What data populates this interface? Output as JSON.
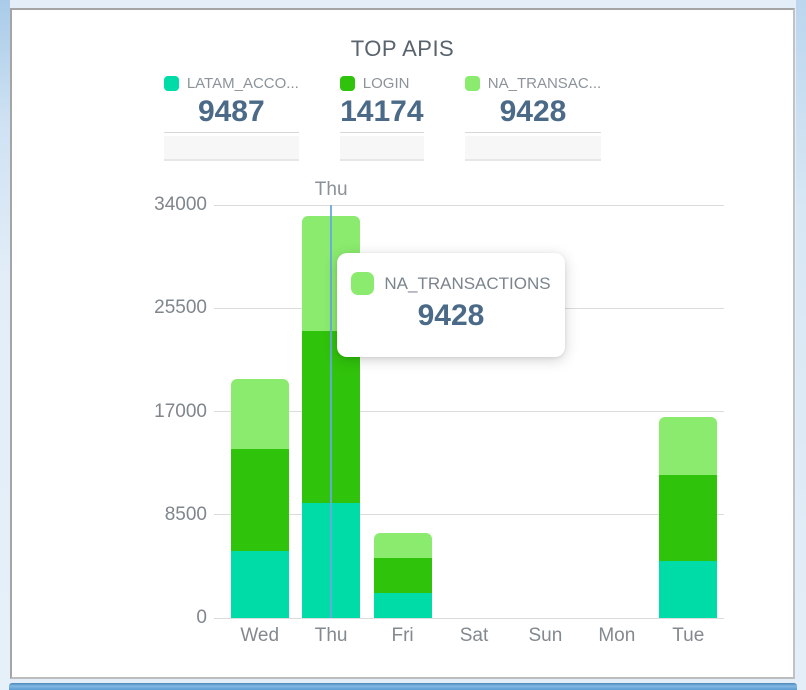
{
  "chart": {
    "title": "TOP APIS",
    "legend": [
      {
        "label": "LATAM_ACCO...",
        "value": "9487",
        "color": "#00DCA8"
      },
      {
        "label": "LOGIN",
        "value": "14174",
        "color": "#30C30B"
      },
      {
        "label": "NA_TRANSAC...",
        "value": "9428",
        "color": "#8AEB6E"
      }
    ],
    "hover": {
      "category_label": "Thu"
    },
    "tooltip": {
      "series": "NA_TRANSACTIONS",
      "value": "9428",
      "color": "#8AEB6E"
    }
  },
  "chart_data": {
    "type": "bar",
    "stacked": true,
    "title": "TOP APIS",
    "categories": [
      "Wed",
      "Thu",
      "Fri",
      "Sat",
      "Sun",
      "Mon",
      "Tue"
    ],
    "series": [
      {
        "name": "LATAM_ACCO...",
        "color": "#00DCA8",
        "values": [
          5500,
          9487,
          2050,
          0,
          0,
          0,
          4700
        ]
      },
      {
        "name": "LOGIN",
        "color": "#30C30B",
        "values": [
          8400,
          14174,
          2900,
          0,
          0,
          0,
          7100
        ]
      },
      {
        "name": "NA_TRANSACTIONS",
        "color": "#8AEB6E",
        "values": [
          5750,
          9428,
          2050,
          0,
          0,
          0,
          4750
        ]
      }
    ],
    "yticks": [
      0,
      8500,
      17000,
      25500,
      34000
    ],
    "ylim": [
      0,
      34000
    ],
    "xlabel": "",
    "ylabel": "",
    "grid": true,
    "legend_position": "top",
    "hovered_category": "Thu",
    "hovered_series": "NA_TRANSACTIONS",
    "hovered_value": 9428
  }
}
